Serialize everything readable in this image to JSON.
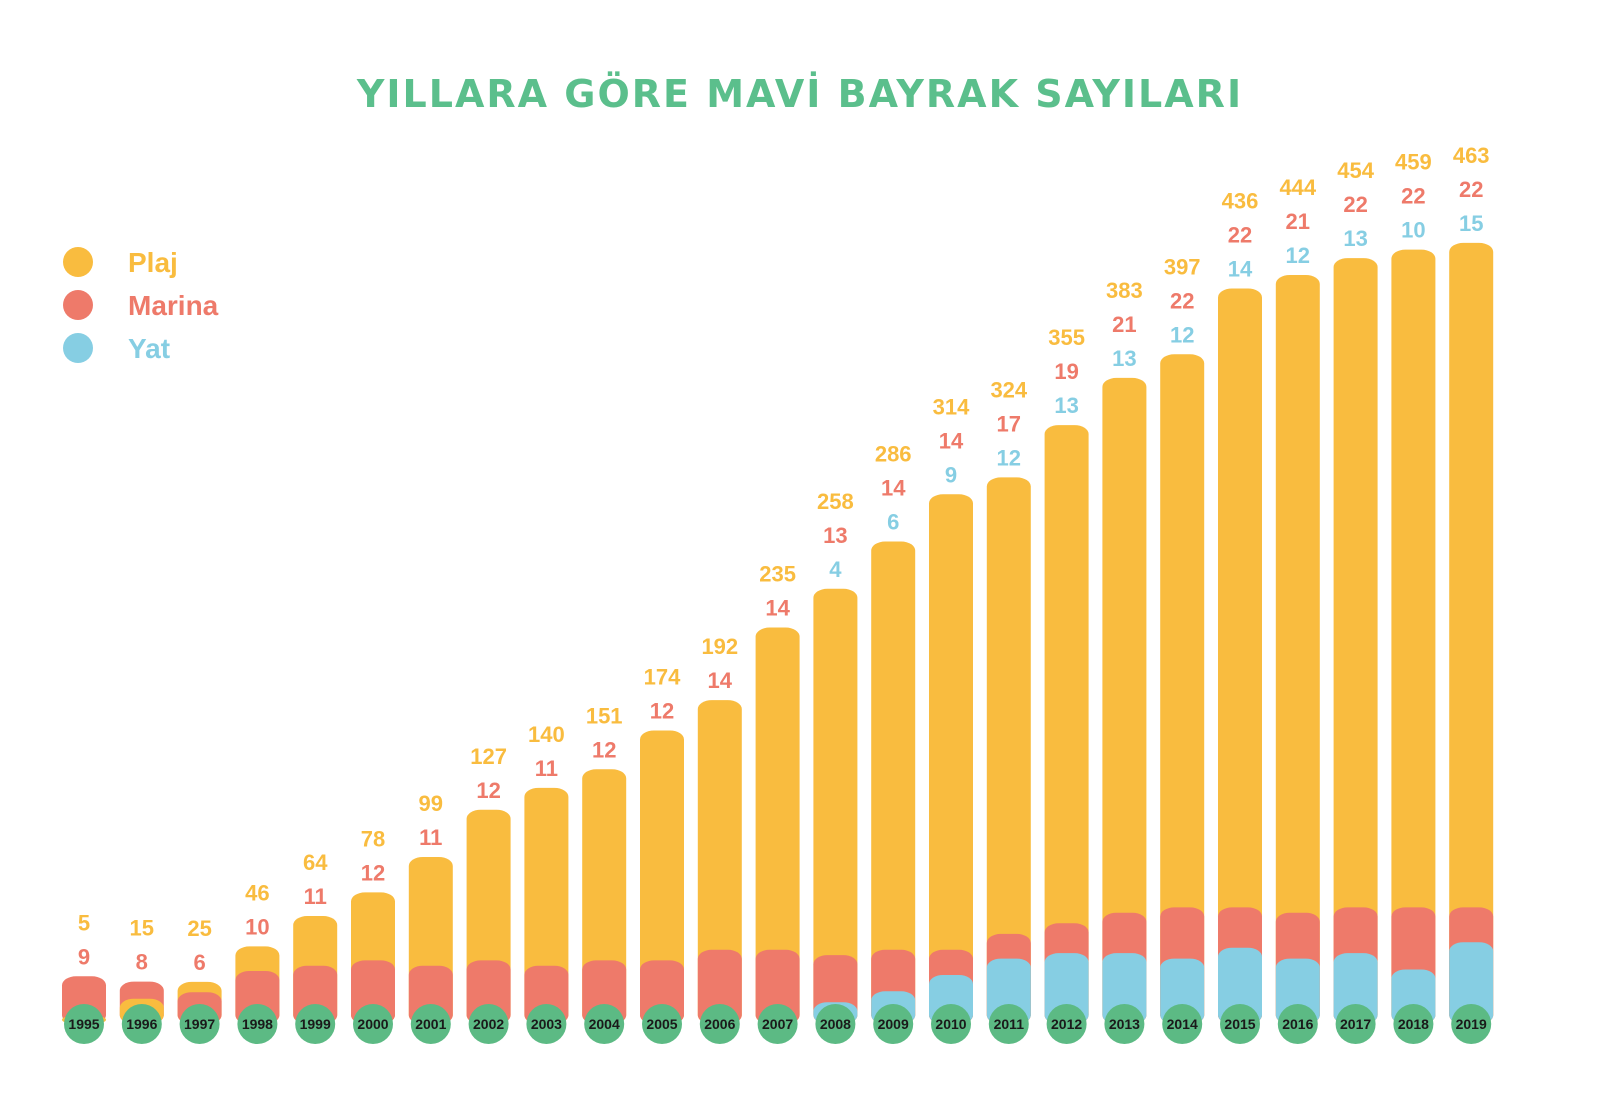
{
  "chart_data": {
    "type": "bar",
    "title": "YILLARA GÖRE MAVİ BAYRAK SAYILARI",
    "categories": [
      "1995",
      "1996",
      "1997",
      "1998",
      "1999",
      "2000",
      "2001",
      "2002",
      "2003",
      "2004",
      "2005",
      "2006",
      "2007",
      "2008",
      "2009",
      "2010",
      "2011",
      "2012",
      "2013",
      "2014",
      "2015",
      "2016",
      "2017",
      "2018",
      "2019"
    ],
    "series": [
      {
        "name": "Plaj",
        "color": "#F9BC3F",
        "values": [
          5,
          15,
          25,
          46,
          64,
          78,
          99,
          127,
          140,
          151,
          174,
          192,
          235,
          258,
          286,
          314,
          324,
          355,
          383,
          397,
          436,
          444,
          454,
          459,
          463
        ]
      },
      {
        "name": "Marina",
        "color": "#EE7A6A",
        "values": [
          9,
          8,
          6,
          10,
          11,
          12,
          11,
          12,
          11,
          12,
          12,
          14,
          14,
          13,
          14,
          14,
          17,
          19,
          21,
          22,
          22,
          21,
          22,
          22,
          22
        ]
      },
      {
        "name": "Yat",
        "color": "#86CEE3",
        "values": [
          null,
          null,
          null,
          null,
          null,
          null,
          null,
          null,
          null,
          null,
          null,
          null,
          null,
          4,
          6,
          9,
          12,
          13,
          13,
          12,
          14,
          12,
          13,
          10,
          15
        ]
      }
    ],
    "title_color": "#5BBF8C",
    "year_marker_color": "#5CBA84",
    "legend_position": "top-left",
    "grid": false
  }
}
